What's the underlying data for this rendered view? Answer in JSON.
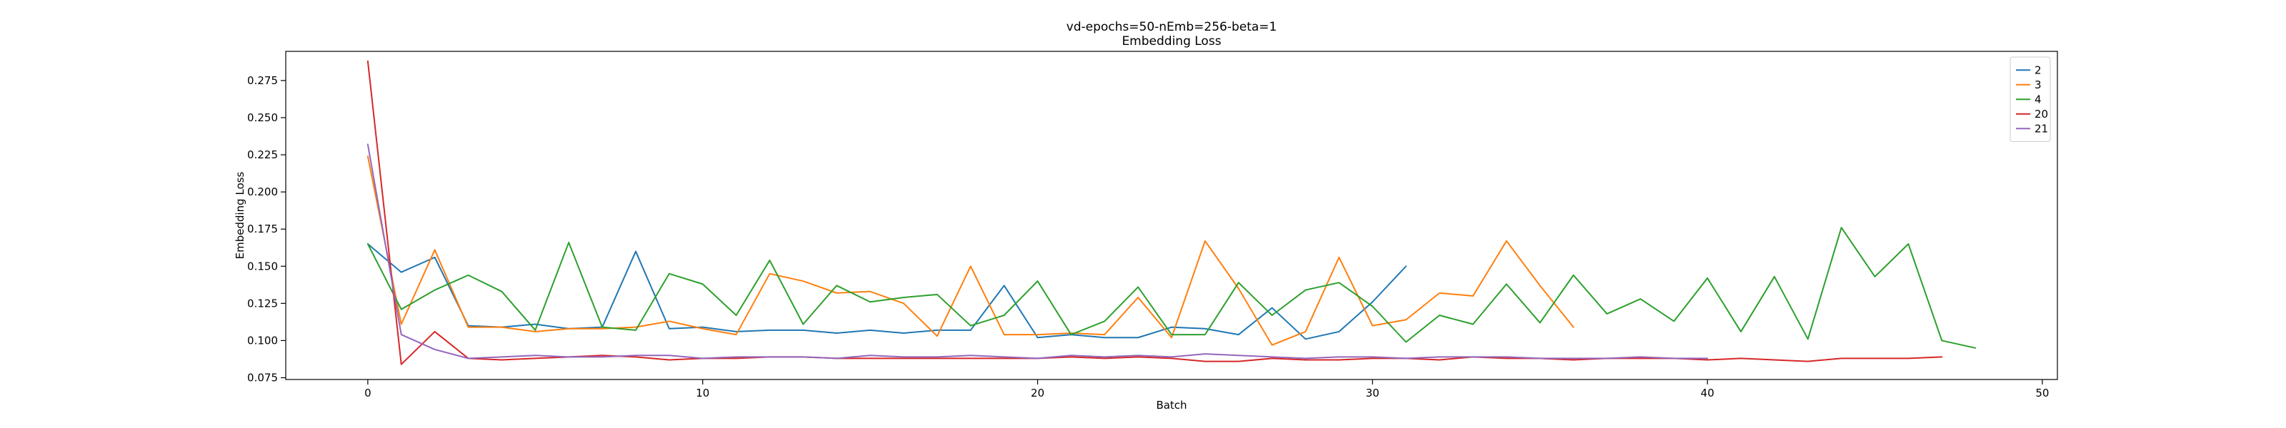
{
  "chart_data": {
    "type": "line",
    "title": "vd-epochs=50-nEmb=256-beta=1",
    "subtitle": "Embedding Loss",
    "xlabel": "Batch",
    "ylabel": "Embedding Loss",
    "xlim": [
      -2.45,
      50.45
    ],
    "ylim": [
      0.0738,
      0.2946
    ],
    "xticks": [
      0,
      10,
      20,
      30,
      40,
      50
    ],
    "xtick_labels": [
      "0",
      "10",
      "20",
      "30",
      "40",
      "50"
    ],
    "yticks": [
      0.075,
      0.1,
      0.125,
      0.15,
      0.175,
      0.2,
      0.225,
      0.25,
      0.275
    ],
    "ytick_labels": [
      "0.075",
      "0.100",
      "0.125",
      "0.150",
      "0.175",
      "0.200",
      "0.225",
      "0.250",
      "0.275"
    ],
    "grid": false,
    "legend_position": "top-right",
    "series": [
      {
        "name": "2",
        "color": "#1f77b4",
        "values": [
          0.165,
          0.146,
          0.156,
          0.11,
          0.109,
          0.111,
          0.108,
          0.109,
          0.16,
          0.108,
          0.109,
          0.106,
          0.107,
          0.107,
          0.105,
          0.107,
          0.105,
          0.107,
          0.107,
          0.137,
          0.102,
          0.104,
          0.102,
          0.102,
          0.109,
          0.108,
          0.104,
          0.122,
          0.101,
          0.106,
          0.126,
          0.15
        ]
      },
      {
        "name": "3",
        "color": "#ff7f0e",
        "values": [
          0.224,
          0.111,
          0.161,
          0.109,
          0.109,
          0.106,
          0.108,
          0.108,
          0.109,
          0.113,
          0.108,
          0.104,
          0.145,
          0.14,
          0.132,
          0.133,
          0.125,
          0.103,
          0.15,
          0.104,
          0.104,
          0.105,
          0.104,
          0.129,
          0.102,
          0.167,
          0.135,
          0.097,
          0.106,
          0.156,
          0.11,
          0.114,
          0.132,
          0.13,
          0.167,
          0.137,
          0.109
        ]
      },
      {
        "name": "4",
        "color": "#2ca02c",
        "values": [
          0.165,
          0.121,
          0.134,
          0.144,
          0.133,
          0.107,
          0.166,
          0.109,
          0.107,
          0.145,
          0.138,
          0.117,
          0.154,
          0.111,
          0.137,
          0.126,
          0.129,
          0.131,
          0.11,
          0.117,
          0.14,
          0.104,
          0.113,
          0.136,
          0.104,
          0.104,
          0.139,
          0.117,
          0.134,
          0.139,
          0.123,
          0.099,
          0.117,
          0.111,
          0.138,
          0.112,
          0.144,
          0.118,
          0.128,
          0.113,
          0.142,
          0.106,
          0.143,
          0.101,
          0.176,
          0.143,
          0.165,
          0.1,
          0.095
        ]
      },
      {
        "name": "20",
        "color": "#d62728",
        "values": [
          0.288,
          0.084,
          0.106,
          0.088,
          0.087,
          0.088,
          0.089,
          0.09,
          0.089,
          0.087,
          0.088,
          0.088,
          0.089,
          0.089,
          0.088,
          0.088,
          0.088,
          0.088,
          0.088,
          0.088,
          0.088,
          0.089,
          0.088,
          0.089,
          0.088,
          0.086,
          0.086,
          0.088,
          0.087,
          0.087,
          0.088,
          0.088,
          0.087,
          0.089,
          0.088,
          0.088,
          0.087,
          0.088,
          0.088,
          0.088,
          0.087,
          0.088,
          0.087,
          0.086,
          0.088,
          0.088,
          0.088,
          0.089
        ]
      },
      {
        "name": "21",
        "color": "#9467bd",
        "values": [
          0.232,
          0.104,
          0.094,
          0.088,
          0.089,
          0.09,
          0.089,
          0.089,
          0.09,
          0.09,
          0.088,
          0.089,
          0.089,
          0.089,
          0.088,
          0.09,
          0.089,
          0.089,
          0.09,
          0.089,
          0.088,
          0.09,
          0.089,
          0.09,
          0.089,
          0.091,
          0.09,
          0.089,
          0.088,
          0.089,
          0.089,
          0.088,
          0.089,
          0.089,
          0.089,
          0.088,
          0.088,
          0.088,
          0.089,
          0.088,
          0.088
        ]
      }
    ]
  }
}
